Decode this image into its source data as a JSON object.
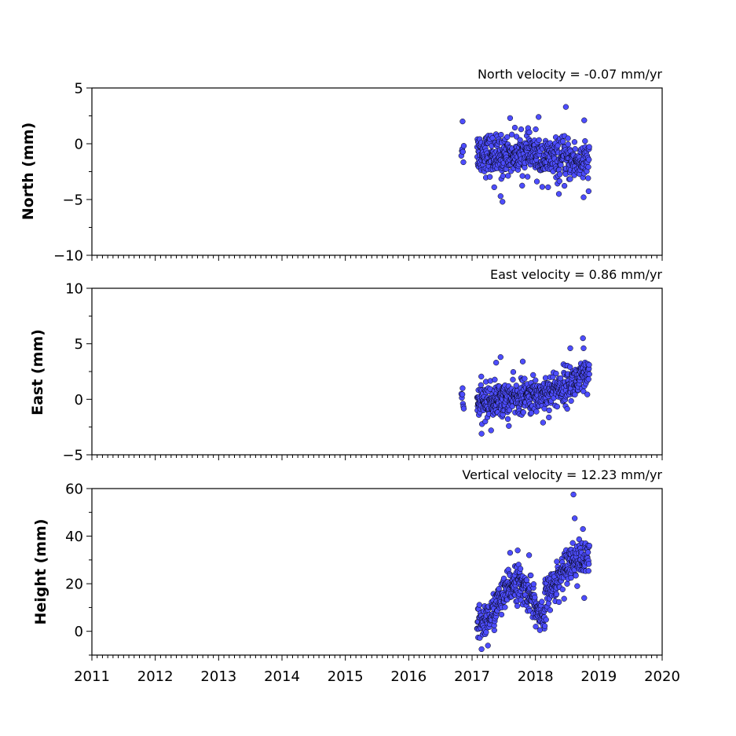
{
  "chart_data": [
    {
      "type": "scatter",
      "panel": "north",
      "title": "North velocity = -0.07 mm/yr",
      "xlabel": "",
      "ylabel": "North (mm)",
      "xlim": [
        2011,
        2020
      ],
      "ylim": [
        -10,
        5
      ],
      "yticks": [
        5,
        0,
        -5,
        -10
      ],
      "ytick_labels": [
        "5",
        "0",
        "−5",
        "−10"
      ],
      "xticks": [
        2011,
        2012,
        2013,
        2014,
        2015,
        2016,
        2017,
        2018,
        2019,
        2020
      ],
      "grid": false,
      "marker_color": "#4d4dff",
      "edge_color": "#000000",
      "segments": [
        {
          "start": 2016.83,
          "end": 2016.87,
          "start_value": -0.3,
          "end_value": -0.5,
          "spread": 1.0,
          "n": 6
        },
        {
          "start": 2017.08,
          "end": 2017.5,
          "start_value": -0.7,
          "end_value": -1.2,
          "spread": 1.2,
          "n": 140
        },
        {
          "start": 2017.5,
          "end": 2018.0,
          "start_value": -1.0,
          "end_value": -0.8,
          "spread": 1.1,
          "n": 150
        },
        {
          "start": 2018.0,
          "end": 2018.85,
          "start_value": -1.2,
          "end_value": -1.7,
          "spread": 1.2,
          "n": 230
        }
      ],
      "highlights": [
        {
          "x": 2016.85,
          "y": 2.0
        },
        {
          "x": 2017.35,
          "y": -3.9
        },
        {
          "x": 2017.45,
          "y": -4.7
        },
        {
          "x": 2017.48,
          "y": -5.2
        },
        {
          "x": 2017.6,
          "y": 2.3
        },
        {
          "x": 2018.05,
          "y": 2.4
        },
        {
          "x": 2018.48,
          "y": 3.3
        },
        {
          "x": 2018.37,
          "y": -4.5
        },
        {
          "x": 2018.76,
          "y": -4.8
        },
        {
          "x": 2018.77,
          "y": 2.1
        },
        {
          "x": 2018.2,
          "y": -3.9
        }
      ]
    },
    {
      "type": "scatter",
      "panel": "east",
      "title": "East velocity = 0.86 mm/yr",
      "xlabel": "",
      "ylabel": "East (mm)",
      "xlim": [
        2011,
        2020
      ],
      "ylim": [
        -5,
        10
      ],
      "yticks": [
        10,
        5,
        0,
        -5
      ],
      "ytick_labels": [
        "10",
        "5",
        "0",
        "−5"
      ],
      "xticks": [
        2011,
        2012,
        2013,
        2014,
        2015,
        2016,
        2017,
        2018,
        2019,
        2020
      ],
      "grid": false,
      "marker_color": "#4d4dff",
      "edge_color": "#000000",
      "segments": [
        {
          "start": 2016.83,
          "end": 2016.87,
          "start_value": -0.3,
          "end_value": -0.6,
          "spread": 0.9,
          "n": 6
        },
        {
          "start": 2017.08,
          "end": 2017.5,
          "start_value": -0.3,
          "end_value": 0.0,
          "spread": 1.0,
          "n": 140
        },
        {
          "start": 2017.5,
          "end": 2018.0,
          "start_value": 0.0,
          "end_value": 0.3,
          "spread": 1.0,
          "n": 150
        },
        {
          "start": 2018.0,
          "end": 2018.85,
          "start_value": 0.3,
          "end_value": 2.0,
          "spread": 1.1,
          "n": 230
        }
      ],
      "highlights": [
        {
          "x": 2016.85,
          "y": 1.0
        },
        {
          "x": 2017.15,
          "y": -3.1
        },
        {
          "x": 2017.3,
          "y": -2.8
        },
        {
          "x": 2017.38,
          "y": 3.3
        },
        {
          "x": 2017.45,
          "y": 3.8
        },
        {
          "x": 2017.8,
          "y": 3.4
        },
        {
          "x": 2018.12,
          "y": -2.1
        },
        {
          "x": 2018.55,
          "y": 4.6
        },
        {
          "x": 2018.75,
          "y": 5.5
        },
        {
          "x": 2018.76,
          "y": 4.6
        },
        {
          "x": 2017.58,
          "y": -2.4
        }
      ]
    },
    {
      "type": "scatter",
      "panel": "height",
      "title": "Vertical velocity = 12.23 mm/yr",
      "xlabel": "",
      "ylabel": "Height (mm)",
      "xlim": [
        2011,
        2020
      ],
      "ylim": [
        -10,
        60
      ],
      "yticks": [
        60,
        40,
        20,
        0
      ],
      "ytick_labels": [
        "60",
        "40",
        "20",
        "0"
      ],
      "xticks": [
        2011,
        2012,
        2013,
        2014,
        2015,
        2016,
        2017,
        2018,
        2019,
        2020
      ],
      "xtick_labels": [
        "2011",
        "2012",
        "2013",
        "2014",
        "2015",
        "2016",
        "2017",
        "2018",
        "2019",
        "2020"
      ],
      "grid": false,
      "marker_color": "#4d4dff",
      "edge_color": "#000000",
      "segments": [
        {
          "start": 2017.08,
          "end": 2017.35,
          "start_value": 2.0,
          "end_value": 8.0,
          "spread": 5.0,
          "n": 70
        },
        {
          "start": 2017.35,
          "end": 2017.65,
          "start_value": 10.0,
          "end_value": 20.0,
          "spread": 5.0,
          "n": 90
        },
        {
          "start": 2017.65,
          "end": 2017.98,
          "start_value": 22.0,
          "end_value": 14.0,
          "spread": 5.0,
          "n": 100
        },
        {
          "start": 2017.98,
          "end": 2018.15,
          "start_value": 10.0,
          "end_value": 4.0,
          "spread": 4.0,
          "n": 50
        },
        {
          "start": 2018.15,
          "end": 2018.5,
          "start_value": 14.0,
          "end_value": 28.0,
          "spread": 5.0,
          "n": 100
        },
        {
          "start": 2018.5,
          "end": 2018.85,
          "start_value": 30.0,
          "end_value": 30.0,
          "spread": 5.0,
          "n": 100
        }
      ],
      "highlights": [
        {
          "x": 2017.15,
          "y": -7.5
        },
        {
          "x": 2017.25,
          "y": -6.0
        },
        {
          "x": 2017.6,
          "y": 33.0
        },
        {
          "x": 2017.72,
          "y": 34.0
        },
        {
          "x": 2017.9,
          "y": 32.0
        },
        {
          "x": 2018.07,
          "y": 0.5
        },
        {
          "x": 2018.6,
          "y": 57.5
        },
        {
          "x": 2018.62,
          "y": 47.5
        },
        {
          "x": 2018.75,
          "y": 43.0
        },
        {
          "x": 2018.77,
          "y": 14.0
        }
      ]
    }
  ]
}
